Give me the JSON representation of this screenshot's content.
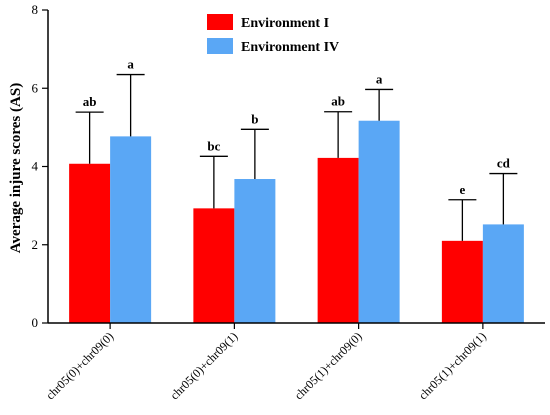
{
  "chart_data": {
    "type": "bar",
    "ylabel": "Average injure scores (AS)",
    "xlabel": "",
    "ylim": [
      0,
      8
    ],
    "yticks": [
      "0",
      "2",
      "4",
      "6",
      "8"
    ],
    "categories": [
      "chr05(0)+chr09(0)",
      "chr05(0)+chr09(1)",
      "chr05(1)+chr09(0)",
      "chr05(1)+chr09(1)"
    ],
    "series": [
      {
        "name": "Environment I",
        "color": "#ff0000",
        "values": [
          4.07,
          2.93,
          4.22,
          2.1
        ],
        "errors": [
          1.32,
          1.33,
          1.18,
          1.05
        ],
        "letters": [
          "ab",
          "bc",
          "ab",
          "e"
        ]
      },
      {
        "name": "Environment IV",
        "color": "#5aa7f5",
        "values": [
          4.77,
          3.68,
          5.17,
          2.52
        ],
        "errors": [
          1.58,
          1.27,
          0.8,
          1.3
        ],
        "letters": [
          "a",
          "b",
          "a",
          "cd"
        ]
      }
    ],
    "legend_position": "top-center",
    "grid": false
  }
}
